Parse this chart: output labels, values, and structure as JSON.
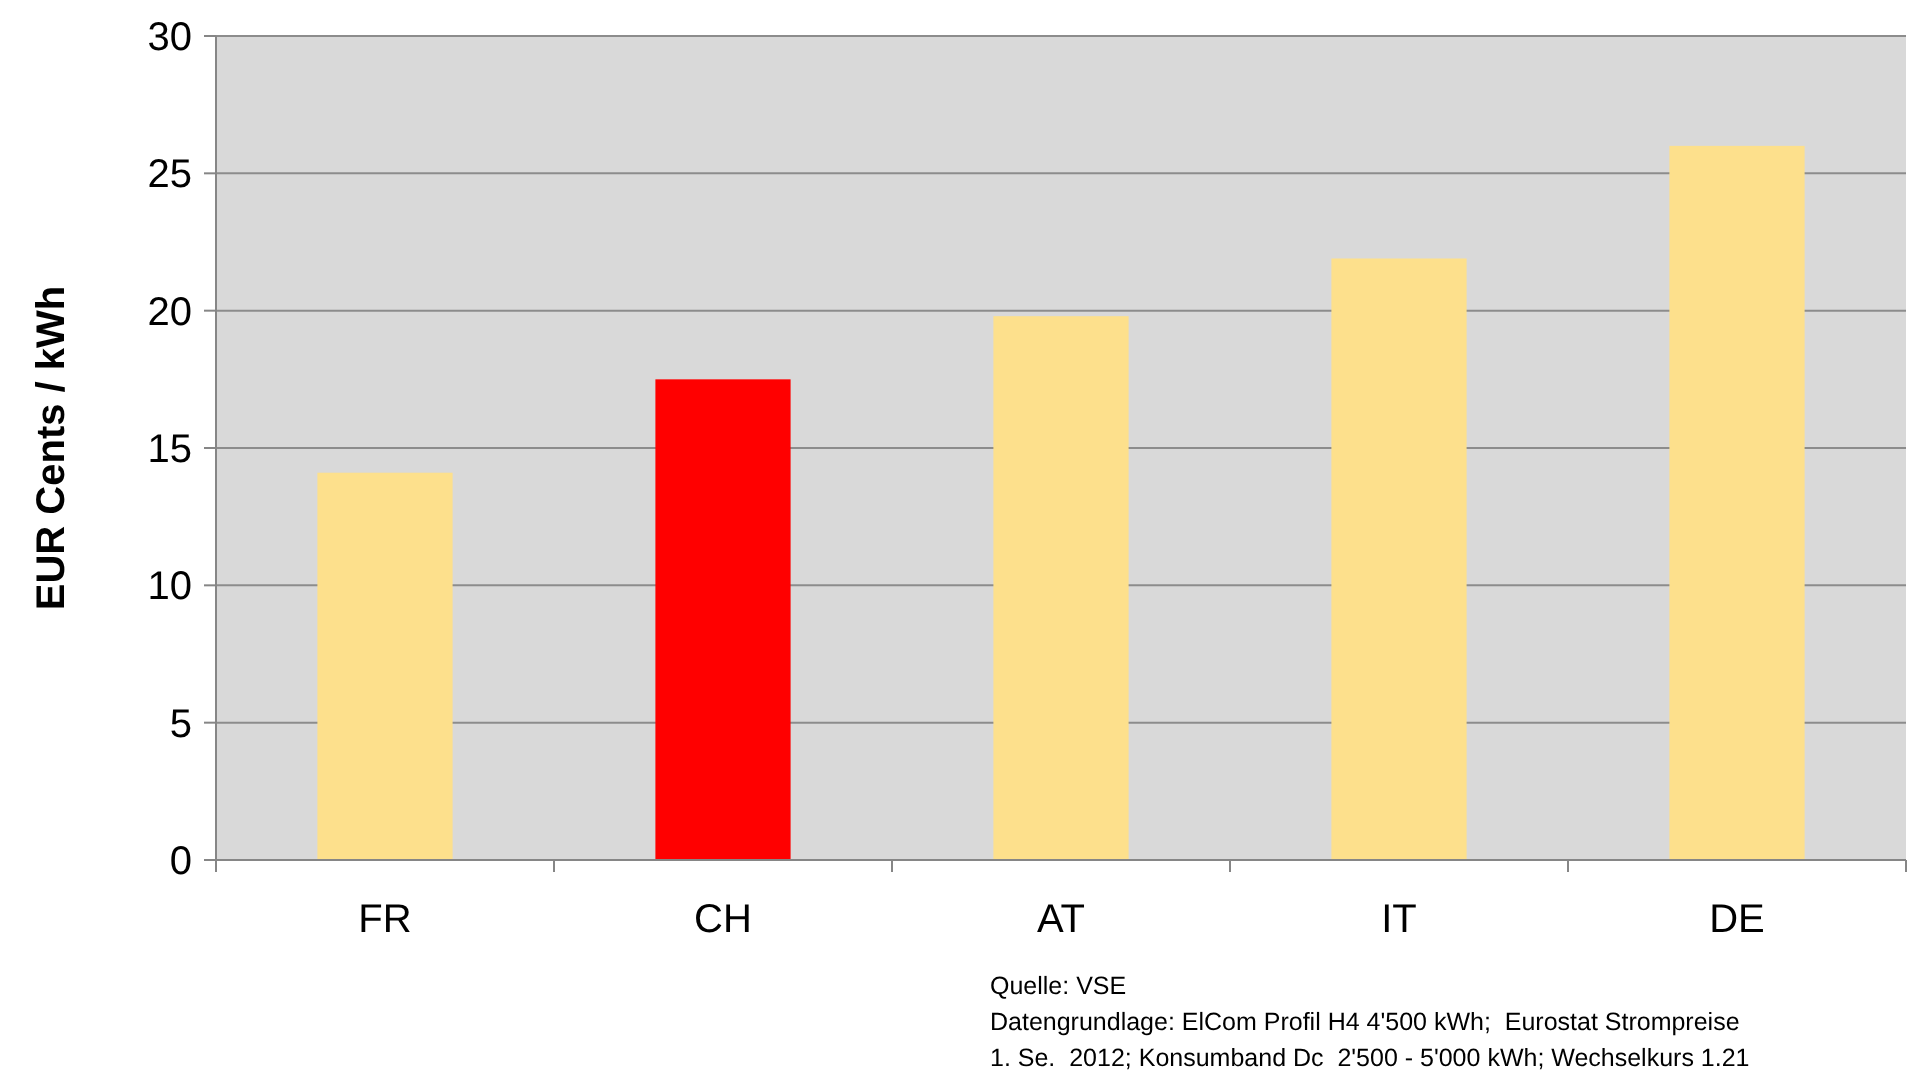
{
  "chart_data": {
    "type": "bar",
    "ylabel": "EUR Cents / kWh",
    "categories": [
      "FR",
      "CH",
      "AT",
      "IT",
      "DE"
    ],
    "values": [
      14.1,
      17.5,
      19.8,
      21.9,
      26.0
    ],
    "colors": [
      "#fde08c",
      "#ff0000",
      "#fde08c",
      "#fde08c",
      "#fde08c"
    ],
    "ylim": [
      0,
      30
    ],
    "yticks": [
      0,
      5,
      10,
      15,
      20,
      25,
      30
    ],
    "grid": "y",
    "annotations": [
      "Quelle: VSE",
      "Datengrundlage: ElCom Profil H4 4'500 kWh;  Eurostat Strompreise",
      "1. Se.  2012; Konsumband Dc  2'500 - 5'000 kWh; Wechselkurs 1.21"
    ]
  }
}
